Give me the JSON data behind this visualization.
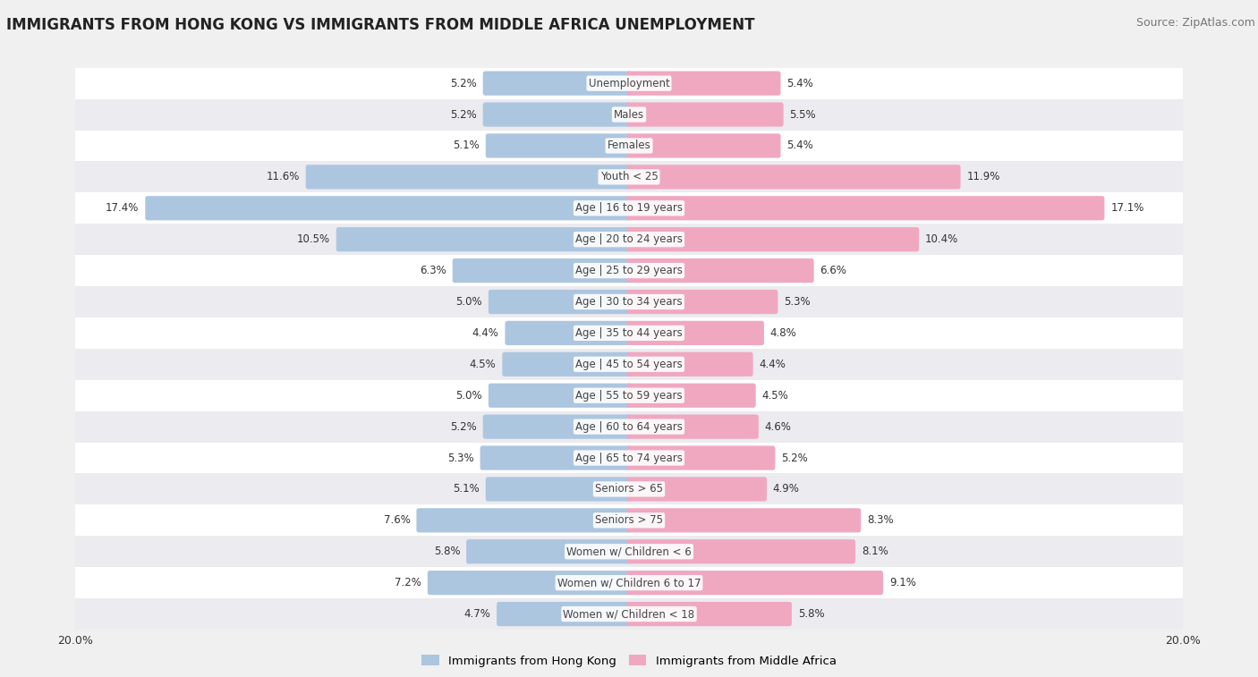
{
  "title": "IMMIGRANTS FROM HONG KONG VS IMMIGRANTS FROM MIDDLE AFRICA UNEMPLOYMENT",
  "source": "Source: ZipAtlas.com",
  "categories": [
    "Unemployment",
    "Males",
    "Females",
    "Youth < 25",
    "Age | 16 to 19 years",
    "Age | 20 to 24 years",
    "Age | 25 to 29 years",
    "Age | 30 to 34 years",
    "Age | 35 to 44 years",
    "Age | 45 to 54 years",
    "Age | 55 to 59 years",
    "Age | 60 to 64 years",
    "Age | 65 to 74 years",
    "Seniors > 65",
    "Seniors > 75",
    "Women w/ Children < 6",
    "Women w/ Children 6 to 17",
    "Women w/ Children < 18"
  ],
  "left_values": [
    5.2,
    5.2,
    5.1,
    11.6,
    17.4,
    10.5,
    6.3,
    5.0,
    4.4,
    4.5,
    5.0,
    5.2,
    5.3,
    5.1,
    7.6,
    5.8,
    7.2,
    4.7
  ],
  "right_values": [
    5.4,
    5.5,
    5.4,
    11.9,
    17.1,
    10.4,
    6.6,
    5.3,
    4.8,
    4.4,
    4.5,
    4.6,
    5.2,
    4.9,
    8.3,
    8.1,
    9.1,
    5.8
  ],
  "left_color": "#adc6e0",
  "right_color": "#f0a8c0",
  "label_left": "Immigrants from Hong Kong",
  "label_right": "Immigrants from Middle Africa",
  "axis_max": 20.0,
  "title_fontsize": 12,
  "source_fontsize": 9,
  "bar_height": 0.62,
  "label_fontsize": 8.5,
  "value_fontsize": 8.5,
  "row_colors": [
    "#ffffff",
    "#ebebf0"
  ]
}
